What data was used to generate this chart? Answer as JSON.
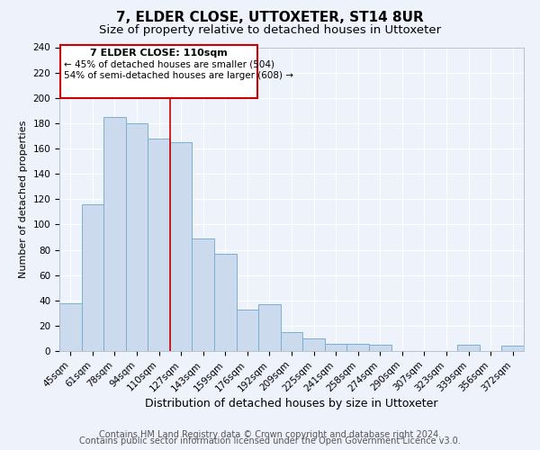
{
  "title": "7, ELDER CLOSE, UTTOXETER, ST14 8UR",
  "subtitle": "Size of property relative to detached houses in Uttoxeter",
  "xlabel": "Distribution of detached houses by size in Uttoxeter",
  "ylabel": "Number of detached properties",
  "categories": [
    "45sqm",
    "61sqm",
    "78sqm",
    "94sqm",
    "110sqm",
    "127sqm",
    "143sqm",
    "159sqm",
    "176sqm",
    "192sqm",
    "209sqm",
    "225sqm",
    "241sqm",
    "258sqm",
    "274sqm",
    "290sqm",
    "307sqm",
    "323sqm",
    "339sqm",
    "356sqm",
    "372sqm"
  ],
  "values": [
    38,
    116,
    185,
    180,
    168,
    165,
    89,
    77,
    33,
    37,
    15,
    10,
    6,
    6,
    5,
    0,
    0,
    0,
    5,
    0,
    4
  ],
  "bar_color": "#ccdaee",
  "bar_edge_color": "#7bafd4",
  "red_line_index": 4,
  "annotation_title": "7 ELDER CLOSE: 110sqm",
  "annotation_line1": "← 45% of detached houses are smaller (504)",
  "annotation_line2": "54% of semi-detached houses are larger (608) →",
  "annotation_box_edge": "#cc0000",
  "red_line_color": "#cc0000",
  "ylim": [
    0,
    240
  ],
  "yticks": [
    0,
    20,
    40,
    60,
    80,
    100,
    120,
    140,
    160,
    180,
    200,
    220,
    240
  ],
  "footer1": "Contains HM Land Registry data © Crown copyright and database right 2024.",
  "footer2": "Contains public sector information licensed under the Open Government Licence v3.0.",
  "background_color": "#eef2fb",
  "plot_background": "#eef2fb",
  "grid_color": "#ffffff",
  "title_fontsize": 11,
  "subtitle_fontsize": 9.5,
  "xlabel_fontsize": 9,
  "ylabel_fontsize": 8,
  "tick_fontsize": 7.5,
  "footer_fontsize": 7,
  "ann_title_fontsize": 8,
  "ann_text_fontsize": 7.5
}
